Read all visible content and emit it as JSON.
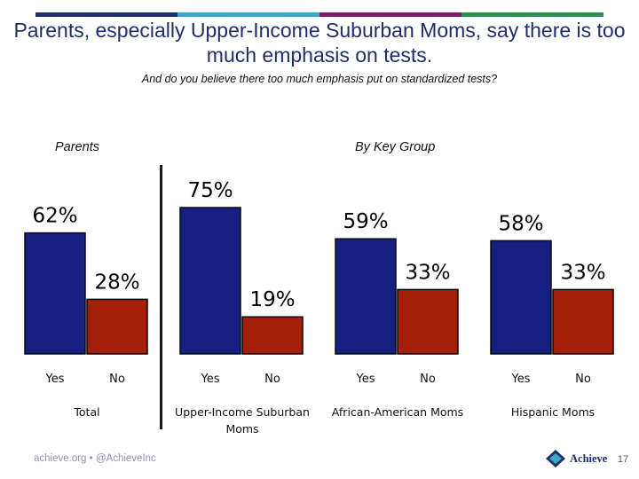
{
  "header": {
    "title": "Parents, especially Upper-Income Suburban Moms, say there is too much emphasis on tests.",
    "subtitle": "And do you believe there too much emphasis put on standardized tests?"
  },
  "sections": {
    "left": "Parents",
    "right": "By Key Group"
  },
  "colors": {
    "yes": "#141f80",
    "no": "#a31f0a",
    "bar_stroke": "#0a0a0a",
    "top_bar": [
      "#1f2f6e",
      "#3fa8c8",
      "#7a1e6e",
      "#2a8f4f"
    ]
  },
  "chart_data": {
    "type": "bar",
    "title": "Parents, especially Upper-Income Suburban Moms, say there is too much emphasis on tests.",
    "subtitle": "And do you believe there too much emphasis put on standardized tests?",
    "ylabel": "",
    "xlabel": "",
    "ylim": [
      0,
      100
    ],
    "unit": "%",
    "series_names": [
      "Yes",
      "No"
    ],
    "groups": [
      {
        "label": "Total",
        "label_lines": [
          "Total"
        ],
        "yes": 62,
        "no": 28
      },
      {
        "label": "Upper-Income Suburban Moms",
        "label_lines": [
          "Upper-Income Suburban",
          "Moms"
        ],
        "yes": 75,
        "no": 19
      },
      {
        "label": "African-American Moms",
        "label_lines": [
          "African-American Moms"
        ],
        "yes": 59,
        "no": 33
      },
      {
        "label": "Hispanic Moms",
        "label_lines": [
          "Hispanic Moms"
        ],
        "yes": 58,
        "no": 33
      }
    ]
  },
  "footer": {
    "handle": "achieve.org • @AchieveInc",
    "logo_text": "Achieve",
    "page_number": "17"
  }
}
